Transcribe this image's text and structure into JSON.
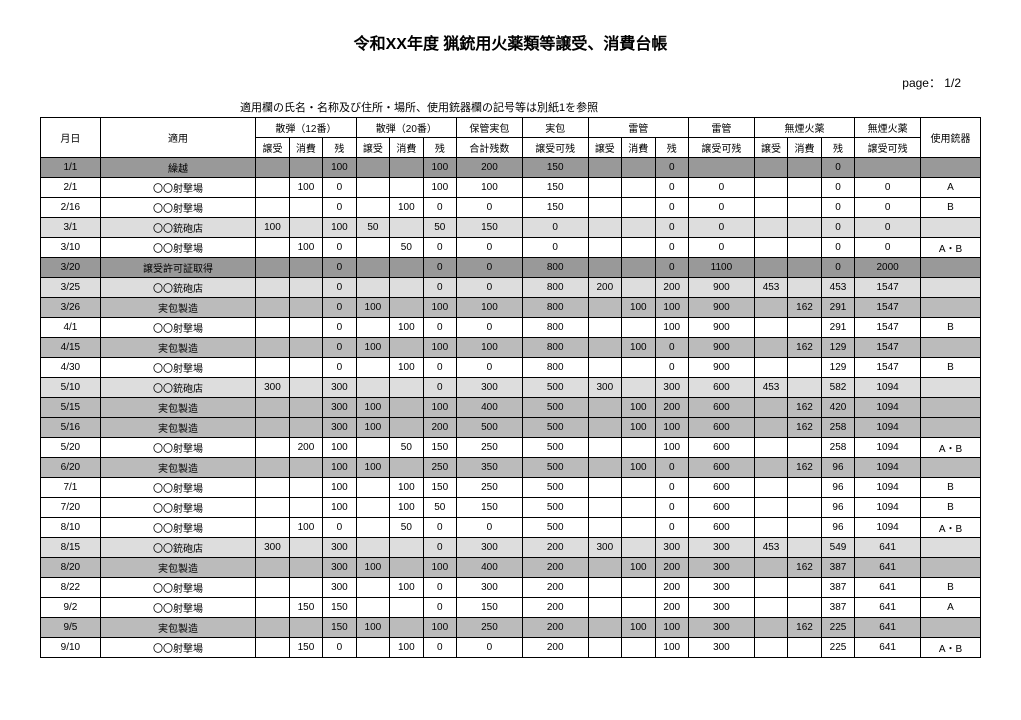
{
  "title": "令和XX年度 猟銃用火薬類等譲受、消費台帳",
  "page_label": "page： 1/2",
  "note": "適用欄の氏名・名称及び住所・場所、使用銃器欄の記号等は別紙1を参照",
  "headers": {
    "date": "月日",
    "apply": "適用",
    "group12": "散弾（12番）",
    "group20": "散弾（20番）",
    "kept": "保管実包",
    "live": "実包",
    "primer_a": "雷管",
    "primer_b": "雷管",
    "powder_a": "無煙火薬",
    "powder_b": "無煙火薬",
    "firearm": "使用銃器",
    "sub_recv": "譲受",
    "sub_cons": "消費",
    "sub_rem": "残",
    "kept_sub": "合計残数",
    "live_sub": "譲受可残",
    "primer_b_sub": "譲受可残",
    "powder_b_sub": "譲受可残"
  },
  "row_bg": {
    "none": "",
    "dark": "bg-dark",
    "mid": "bg-mid",
    "light": "bg-light"
  },
  "rows": [
    {
      "bg": "dark",
      "date": "1/1",
      "apply": "繰越",
      "g12": [
        "",
        "",
        "100"
      ],
      "g20": [
        "",
        "",
        "100"
      ],
      "kept": "200",
      "live": "150",
      "pra": [
        "",
        "",
        "0"
      ],
      "prb": "",
      "pwa": [
        "",
        "",
        "0"
      ],
      "pwb": "",
      "gun": ""
    },
    {
      "bg": "none",
      "date": "2/1",
      "apply": "〇〇射撃場",
      "g12": [
        "",
        "100",
        "0"
      ],
      "g20": [
        "",
        "",
        "100"
      ],
      "kept": "100",
      "live": "150",
      "pra": [
        "",
        "",
        "0"
      ],
      "prb": "0",
      "pwa": [
        "",
        "",
        "0"
      ],
      "pwb": "0",
      "gun": "A"
    },
    {
      "bg": "none",
      "date": "2/16",
      "apply": "〇〇射撃場",
      "g12": [
        "",
        "",
        "0"
      ],
      "g20": [
        "",
        "100",
        "0"
      ],
      "kept": "0",
      "live": "150",
      "pra": [
        "",
        "",
        "0"
      ],
      "prb": "0",
      "pwa": [
        "",
        "",
        "0"
      ],
      "pwb": "0",
      "gun": "B"
    },
    {
      "bg": "light",
      "date": "3/1",
      "apply": "〇〇銃砲店",
      "g12": [
        "100",
        "",
        "100"
      ],
      "g20": [
        "50",
        "",
        "50"
      ],
      "kept": "150",
      "live": "0",
      "pra": [
        "",
        "",
        "0"
      ],
      "prb": "0",
      "pwa": [
        "",
        "",
        "0"
      ],
      "pwb": "0",
      "gun": ""
    },
    {
      "bg": "none",
      "date": "3/10",
      "apply": "〇〇射撃場",
      "g12": [
        "",
        "100",
        "0"
      ],
      "g20": [
        "",
        "50",
        "0"
      ],
      "kept": "0",
      "live": "0",
      "pra": [
        "",
        "",
        "0"
      ],
      "prb": "0",
      "pwa": [
        "",
        "",
        "0"
      ],
      "pwb": "0",
      "gun": "A・B"
    },
    {
      "bg": "dark",
      "date": "3/20",
      "apply": "譲受許可証取得",
      "g12": [
        "",
        "",
        "0"
      ],
      "g20": [
        "",
        "",
        "0"
      ],
      "kept": "0",
      "live": "800",
      "pra": [
        "",
        "",
        "0"
      ],
      "prb": "1100",
      "pwa": [
        "",
        "",
        "0"
      ],
      "pwb": "2000",
      "gun": ""
    },
    {
      "bg": "light",
      "date": "3/25",
      "apply": "〇〇銃砲店",
      "g12": [
        "",
        "",
        "0"
      ],
      "g20": [
        "",
        "",
        "0"
      ],
      "kept": "0",
      "live": "800",
      "pra": [
        "200",
        "",
        "200"
      ],
      "prb": "900",
      "pwa": [
        "453",
        "",
        "453"
      ],
      "pwb": "1547",
      "gun": ""
    },
    {
      "bg": "mid",
      "date": "3/26",
      "apply": "実包製造",
      "g12": [
        "",
        "",
        "0"
      ],
      "g20": [
        "100",
        "",
        "100"
      ],
      "kept": "100",
      "live": "800",
      "pra": [
        "",
        "100",
        "100"
      ],
      "prb": "900",
      "pwa": [
        "",
        "162",
        "291"
      ],
      "pwb": "1547",
      "gun": ""
    },
    {
      "bg": "none",
      "date": "4/1",
      "apply": "〇〇射撃場",
      "g12": [
        "",
        "",
        "0"
      ],
      "g20": [
        "",
        "100",
        "0"
      ],
      "kept": "0",
      "live": "800",
      "pra": [
        "",
        "",
        "100"
      ],
      "prb": "900",
      "pwa": [
        "",
        "",
        "291"
      ],
      "pwb": "1547",
      "gun": "B"
    },
    {
      "bg": "mid",
      "date": "4/15",
      "apply": "実包製造",
      "g12": [
        "",
        "",
        "0"
      ],
      "g20": [
        "100",
        "",
        "100"
      ],
      "kept": "100",
      "live": "800",
      "pra": [
        "",
        "100",
        "0"
      ],
      "prb": "900",
      "pwa": [
        "",
        "162",
        "129"
      ],
      "pwb": "1547",
      "gun": ""
    },
    {
      "bg": "none",
      "date": "4/30",
      "apply": "〇〇射撃場",
      "g12": [
        "",
        "",
        "0"
      ],
      "g20": [
        "",
        "100",
        "0"
      ],
      "kept": "0",
      "live": "800",
      "pra": [
        "",
        "",
        "0"
      ],
      "prb": "900",
      "pwa": [
        "",
        "",
        "129"
      ],
      "pwb": "1547",
      "gun": "B"
    },
    {
      "bg": "light",
      "date": "5/10",
      "apply": "〇〇銃砲店",
      "g12": [
        "300",
        "",
        "300"
      ],
      "g20": [
        "",
        "",
        "0"
      ],
      "kept": "300",
      "live": "500",
      "pra": [
        "300",
        "",
        "300"
      ],
      "prb": "600",
      "pwa": [
        "453",
        "",
        "582"
      ],
      "pwb": "1094",
      "gun": ""
    },
    {
      "bg": "mid",
      "date": "5/15",
      "apply": "実包製造",
      "g12": [
        "",
        "",
        "300"
      ],
      "g20": [
        "100",
        "",
        "100"
      ],
      "kept": "400",
      "live": "500",
      "pra": [
        "",
        "100",
        "200"
      ],
      "prb": "600",
      "pwa": [
        "",
        "162",
        "420"
      ],
      "pwb": "1094",
      "gun": ""
    },
    {
      "bg": "mid",
      "date": "5/16",
      "apply": "実包製造",
      "g12": [
        "",
        "",
        "300"
      ],
      "g20": [
        "100",
        "",
        "200"
      ],
      "kept": "500",
      "live": "500",
      "pra": [
        "",
        "100",
        "100"
      ],
      "prb": "600",
      "pwa": [
        "",
        "162",
        "258"
      ],
      "pwb": "1094",
      "gun": ""
    },
    {
      "bg": "none",
      "date": "5/20",
      "apply": "〇〇射撃場",
      "g12": [
        "",
        "200",
        "100"
      ],
      "g20": [
        "",
        "50",
        "150"
      ],
      "kept": "250",
      "live": "500",
      "pra": [
        "",
        "",
        "100"
      ],
      "prb": "600",
      "pwa": [
        "",
        "",
        "258"
      ],
      "pwb": "1094",
      "gun": "A・B"
    },
    {
      "bg": "mid",
      "date": "6/20",
      "apply": "実包製造",
      "g12": [
        "",
        "",
        "100"
      ],
      "g20": [
        "100",
        "",
        "250"
      ],
      "kept": "350",
      "live": "500",
      "pra": [
        "",
        "100",
        "0"
      ],
      "prb": "600",
      "pwa": [
        "",
        "162",
        "96"
      ],
      "pwb": "1094",
      "gun": ""
    },
    {
      "bg": "none",
      "date": "7/1",
      "apply": "〇〇射撃場",
      "g12": [
        "",
        "",
        "100"
      ],
      "g20": [
        "",
        "100",
        "150"
      ],
      "kept": "250",
      "live": "500",
      "pra": [
        "",
        "",
        "0"
      ],
      "prb": "600",
      "pwa": [
        "",
        "",
        "96"
      ],
      "pwb": "1094",
      "gun": "B"
    },
    {
      "bg": "none",
      "date": "7/20",
      "apply": "〇〇射撃場",
      "g12": [
        "",
        "",
        "100"
      ],
      "g20": [
        "",
        "100",
        "50"
      ],
      "kept": "150",
      "live": "500",
      "pra": [
        "",
        "",
        "0"
      ],
      "prb": "600",
      "pwa": [
        "",
        "",
        "96"
      ],
      "pwb": "1094",
      "gun": "B"
    },
    {
      "bg": "none",
      "date": "8/10",
      "apply": "〇〇射撃場",
      "g12": [
        "",
        "100",
        "0"
      ],
      "g20": [
        "",
        "50",
        "0"
      ],
      "kept": "0",
      "live": "500",
      "pra": [
        "",
        "",
        "0"
      ],
      "prb": "600",
      "pwa": [
        "",
        "",
        "96"
      ],
      "pwb": "1094",
      "gun": "A・B"
    },
    {
      "bg": "light",
      "date": "8/15",
      "apply": "〇〇銃砲店",
      "g12": [
        "300",
        "",
        "300"
      ],
      "g20": [
        "",
        "",
        "0"
      ],
      "kept": "300",
      "live": "200",
      "pra": [
        "300",
        "",
        "300"
      ],
      "prb": "300",
      "pwa": [
        "453",
        "",
        "549"
      ],
      "pwb": "641",
      "gun": ""
    },
    {
      "bg": "mid",
      "date": "8/20",
      "apply": "実包製造",
      "g12": [
        "",
        "",
        "300"
      ],
      "g20": [
        "100",
        "",
        "100"
      ],
      "kept": "400",
      "live": "200",
      "pra": [
        "",
        "100",
        "200"
      ],
      "prb": "300",
      "pwa": [
        "",
        "162",
        "387"
      ],
      "pwb": "641",
      "gun": ""
    },
    {
      "bg": "none",
      "date": "8/22",
      "apply": "〇〇射撃場",
      "g12": [
        "",
        "",
        "300"
      ],
      "g20": [
        "",
        "100",
        "0"
      ],
      "kept": "300",
      "live": "200",
      "pra": [
        "",
        "",
        "200"
      ],
      "prb": "300",
      "pwa": [
        "",
        "",
        "387"
      ],
      "pwb": "641",
      "gun": "B"
    },
    {
      "bg": "none",
      "date": "9/2",
      "apply": "〇〇射撃場",
      "g12": [
        "",
        "150",
        "150"
      ],
      "g20": [
        "",
        "",
        "0"
      ],
      "kept": "150",
      "live": "200",
      "pra": [
        "",
        "",
        "200"
      ],
      "prb": "300",
      "pwa": [
        "",
        "",
        "387"
      ],
      "pwb": "641",
      "gun": "A"
    },
    {
      "bg": "mid",
      "date": "9/5",
      "apply": "実包製造",
      "g12": [
        "",
        "",
        "150"
      ],
      "g20": [
        "100",
        "",
        "100"
      ],
      "kept": "250",
      "live": "200",
      "pra": [
        "",
        "100",
        "100"
      ],
      "prb": "300",
      "pwa": [
        "",
        "162",
        "225"
      ],
      "pwb": "641",
      "gun": ""
    },
    {
      "bg": "none",
      "date": "9/10",
      "apply": "〇〇射撃場",
      "g12": [
        "",
        "150",
        "0"
      ],
      "g20": [
        "",
        "100",
        "0"
      ],
      "kept": "0",
      "live": "200",
      "pra": [
        "",
        "",
        "100"
      ],
      "prb": "300",
      "pwa": [
        "",
        "",
        "225"
      ],
      "pwb": "641",
      "gun": "A・B"
    }
  ]
}
